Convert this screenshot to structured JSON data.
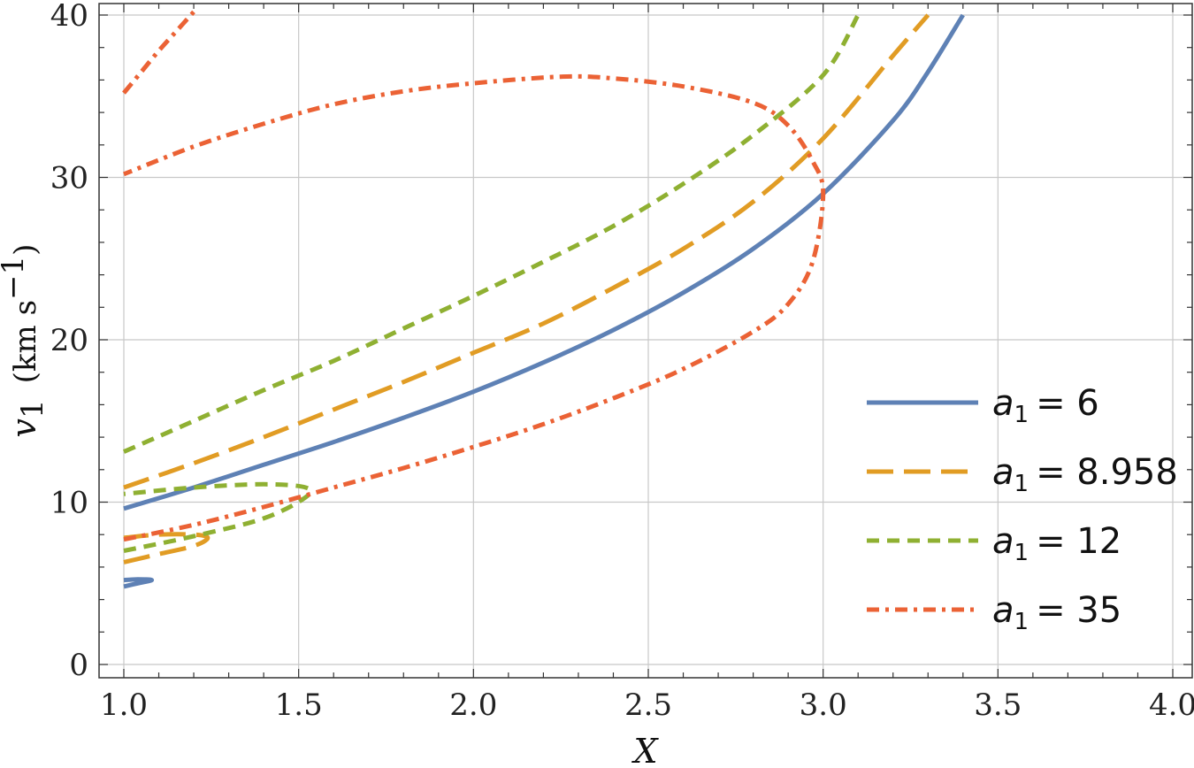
{
  "chart_data": {
    "type": "line",
    "xlabel": "X",
    "ylabel": "v",
    "ylabel_sub": "1",
    "ylabel_units": "(km s",
    "ylabel_units_sup": "−1",
    "ylabel_units_close": ")",
    "xlim": [
      1.0,
      4.0
    ],
    "ylim": [
      0,
      40
    ],
    "x_ticks": [
      "1.0",
      "1.5",
      "2.0",
      "2.5",
      "3.0",
      "3.5",
      "4.0"
    ],
    "x_tick_values": [
      1.0,
      1.5,
      2.0,
      2.5,
      3.0,
      3.5,
      4.0
    ],
    "y_ticks": [
      "0",
      "10",
      "20",
      "30",
      "40"
    ],
    "y_tick_values": [
      0,
      10,
      20,
      30,
      40
    ],
    "grid": true,
    "legend_placement": "bottom-right",
    "series": [
      {
        "name_var": "a",
        "name_sub": "1",
        "name_value": "= 6",
        "color": "#5e81b5",
        "dash": "",
        "segments": [
          [
            [
              1.0,
              9.6
            ],
            [
              1.2,
              10.9
            ],
            [
              1.4,
              12.3
            ],
            [
              1.6,
              13.7
            ],
            [
              1.8,
              15.2
            ],
            [
              2.0,
              16.8
            ],
            [
              2.2,
              18.6
            ],
            [
              2.4,
              20.6
            ],
            [
              2.6,
              22.9
            ],
            [
              2.8,
              25.6
            ],
            [
              3.0,
              29.0
            ],
            [
              3.2,
              33.5
            ],
            [
              3.3,
              36.5
            ],
            [
              3.4,
              40.0
            ]
          ],
          [
            [
              1.0,
              4.8
            ],
            [
              1.04,
              5.0
            ],
            [
              1.08,
              5.2
            ],
            [
              1.04,
              5.25
            ],
            [
              1.0,
              5.2
            ]
          ]
        ]
      },
      {
        "name_var": "a",
        "name_sub": "1",
        "name_value": "= 8.958",
        "color": "#e19c24",
        "dash": "30,12",
        "segments": [
          [
            [
              1.0,
              10.9
            ],
            [
              1.2,
              12.4
            ],
            [
              1.4,
              14.0
            ],
            [
              1.6,
              15.7
            ],
            [
              1.8,
              17.4
            ],
            [
              2.0,
              19.2
            ],
            [
              2.2,
              21.0
            ],
            [
              2.4,
              23.2
            ],
            [
              2.6,
              25.6
            ],
            [
              2.8,
              28.5
            ],
            [
              3.0,
              32.4
            ],
            [
              3.2,
              37.5
            ],
            [
              3.3,
              40.0
            ]
          ],
          [
            [
              1.0,
              6.3
            ],
            [
              1.1,
              6.8
            ],
            [
              1.2,
              7.3
            ],
            [
              1.24,
              7.8
            ],
            [
              1.2,
              8.0
            ],
            [
              1.1,
              8.0
            ],
            [
              1.0,
              7.8
            ]
          ]
        ]
      },
      {
        "name_var": "a",
        "name_sub": "1",
        "name_value": "= 12",
        "color": "#8fb032",
        "dash": "14,9",
        "segments": [
          [
            [
              1.0,
              13.1
            ],
            [
              1.2,
              15.0
            ],
            [
              1.4,
              16.9
            ],
            [
              1.6,
              18.7
            ],
            [
              1.8,
              20.7
            ],
            [
              2.0,
              22.7
            ],
            [
              2.2,
              24.8
            ],
            [
              2.4,
              27.0
            ],
            [
              2.6,
              29.6
            ],
            [
              2.8,
              32.6
            ],
            [
              3.0,
              36.3
            ],
            [
              3.1,
              40.0
            ]
          ],
          [
            [
              1.0,
              7.0
            ],
            [
              1.2,
              7.9
            ],
            [
              1.4,
              9.0
            ],
            [
              1.52,
              10.3
            ],
            [
              1.52,
              10.9
            ],
            [
              1.4,
              11.1
            ],
            [
              1.2,
              10.9
            ],
            [
              1.0,
              10.5
            ]
          ]
        ]
      },
      {
        "name_var": "a",
        "name_sub": "1",
        "name_value": "= 35",
        "color": "#eb6235",
        "dash": "14,7,4,7",
        "segments": [
          [
            [
              1.0,
              7.7
            ],
            [
              1.2,
              8.6
            ],
            [
              1.4,
              9.7
            ],
            [
              1.6,
              10.9
            ],
            [
              1.8,
              12.1
            ],
            [
              2.0,
              13.4
            ],
            [
              2.2,
              14.8
            ],
            [
              2.4,
              16.4
            ],
            [
              2.6,
              18.2
            ],
            [
              2.8,
              20.5
            ],
            [
              2.9,
              22.2
            ],
            [
              2.97,
              24.8
            ],
            [
              3.0,
              29.0
            ],
            [
              2.97,
              31.0
            ],
            [
              2.9,
              33.2
            ],
            [
              2.8,
              34.6
            ],
            [
              2.6,
              35.6
            ],
            [
              2.4,
              36.1
            ],
            [
              2.25,
              36.2
            ],
            [
              2.0,
              35.8
            ],
            [
              1.8,
              35.3
            ],
            [
              1.6,
              34.5
            ],
            [
              1.4,
              33.3
            ],
            [
              1.2,
              31.9
            ],
            [
              1.0,
              30.2
            ]
          ],
          [
            [
              1.0,
              35.2
            ],
            [
              1.05,
              36.5
            ],
            [
              1.1,
              37.8
            ],
            [
              1.15,
              39.0
            ],
            [
              1.2,
              40.2
            ]
          ]
        ]
      }
    ]
  }
}
